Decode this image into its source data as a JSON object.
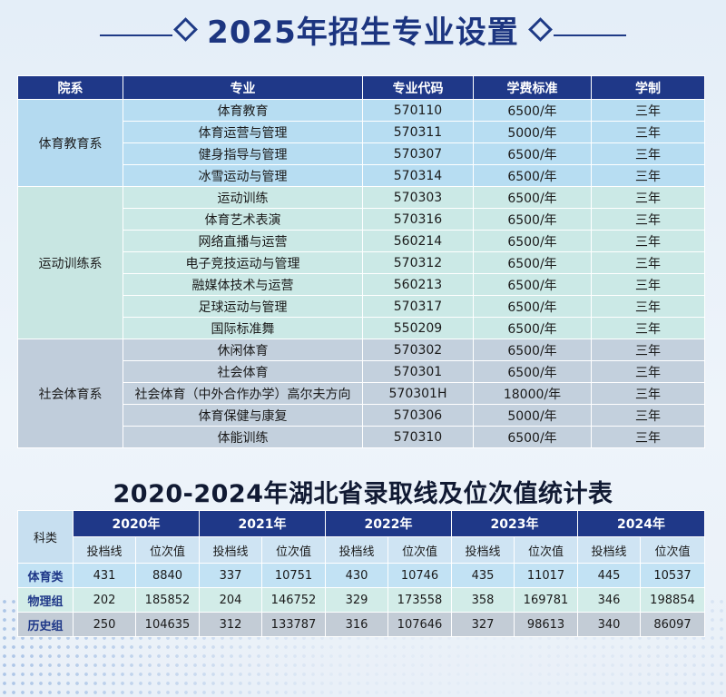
{
  "title": "2025年招生专业设置",
  "majors_table": {
    "headers": [
      "院系",
      "专业",
      "专业代码",
      "学费标准",
      "学制"
    ],
    "groups": [
      {
        "department": "体育教育系",
        "rows": [
          {
            "major": "体育教育",
            "code": "570110",
            "fee": "6500/年",
            "years": "三年"
          },
          {
            "major": "体育运营与管理",
            "code": "570311",
            "fee": "5000/年",
            "years": "三年"
          },
          {
            "major": "健身指导与管理",
            "code": "570307",
            "fee": "6500/年",
            "years": "三年"
          },
          {
            "major": "冰雪运动与管理",
            "code": "570314",
            "fee": "6500/年",
            "years": "三年"
          }
        ]
      },
      {
        "department": "运动训练系",
        "rows": [
          {
            "major": "运动训练",
            "code": "570303",
            "fee": "6500/年",
            "years": "三年"
          },
          {
            "major": "体育艺术表演",
            "code": "570316",
            "fee": "6500/年",
            "years": "三年"
          },
          {
            "major": "网络直播与运营",
            "code": "560214",
            "fee": "6500/年",
            "years": "三年"
          },
          {
            "major": "电子竞技运动与管理",
            "code": "570312",
            "fee": "6500/年",
            "years": "三年"
          },
          {
            "major": "融媒体技术与运营",
            "code": "560213",
            "fee": "6500/年",
            "years": "三年"
          },
          {
            "major": "足球运动与管理",
            "code": "570317",
            "fee": "6500/年",
            "years": "三年"
          },
          {
            "major": "国际标准舞",
            "code": "550209",
            "fee": "6500/年",
            "years": "三年"
          }
        ]
      },
      {
        "department": "社会体育系",
        "rows": [
          {
            "major": "休闲体育",
            "code": "570302",
            "fee": "6500/年",
            "years": "三年"
          },
          {
            "major": "社会体育",
            "code": "570301",
            "fee": "6500/年",
            "years": "三年"
          },
          {
            "major": "社会体育（中外合作办学）高尔夫方向",
            "code": "570301H",
            "fee": "18000/年",
            "years": "三年"
          },
          {
            "major": "体育保健与康复",
            "code": "570306",
            "fee": "5000/年",
            "years": "三年"
          },
          {
            "major": "体能训练",
            "code": "570310",
            "fee": "6500/年",
            "years": "三年"
          }
        ]
      }
    ]
  },
  "scores_title": "2020-2024年湖北省录取线及位次值统计表",
  "scores_table": {
    "category_header": "科类",
    "years": [
      "2020年",
      "2021年",
      "2022年",
      "2023年",
      "2024年"
    ],
    "sub_headers": [
      "投档线",
      "位次值"
    ],
    "rows": [
      {
        "category": "体育类",
        "values": [
          "431",
          "8840",
          "337",
          "10751",
          "430",
          "10746",
          "435",
          "11017",
          "445",
          "10537"
        ]
      },
      {
        "category": "物理组",
        "values": [
          "202",
          "185852",
          "204",
          "146752",
          "329",
          "173558",
          "358",
          "169781",
          "346",
          "198854"
        ]
      },
      {
        "category": "历史组",
        "values": [
          "250",
          "104635",
          "312",
          "133787",
          "316",
          "107646",
          "327",
          "98613",
          "340",
          "86097"
        ]
      }
    ]
  }
}
